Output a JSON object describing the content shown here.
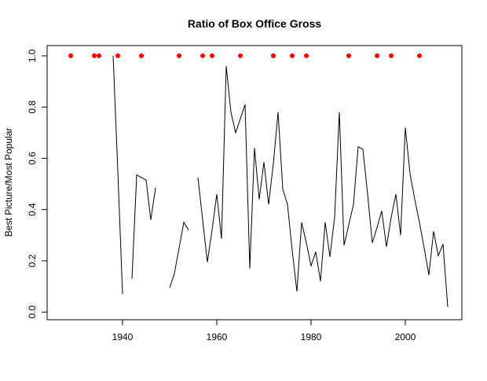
{
  "chart_data": {
    "type": "line",
    "title": "Ratio of Box Office Gross",
    "y_label": "Best Picture/Most Popular",
    "xlim": [
      1924,
      2012
    ],
    "ylim": [
      -0.03,
      1.04
    ],
    "xticks": [
      1940,
      1960,
      1980,
      2000
    ],
    "yticks": [
      {
        "value": 0,
        "label": "0.0"
      },
      0.2,
      0.4,
      0.6,
      0.8,
      {
        "value": 1,
        "label": "1.0"
      }
    ],
    "grid": false,
    "series": [
      {
        "type": "line",
        "color": "#000000",
        "x": [
          1938,
          1939,
          1940,
          1941,
          1942,
          1943,
          1944,
          1945,
          1946,
          1947,
          1948,
          1949,
          1950,
          1951,
          1952,
          1953,
          1954,
          1955,
          1956,
          1957,
          1958,
          1959,
          1960,
          1961,
          1962,
          1963,
          1964,
          1965,
          1966,
          1967,
          1968,
          1969,
          1970,
          1971,
          1972,
          1973,
          1974,
          1975,
          1976,
          1977,
          1978,
          1979,
          1980,
          1981,
          1982,
          1983,
          1984,
          1985,
          1986,
          1987,
          1988,
          1989,
          1990,
          1991,
          1992,
          1993,
          1994,
          1995,
          1996,
          1997,
          1998,
          1999,
          2000,
          2001,
          2002,
          2003,
          2004,
          2005,
          2006,
          2007,
          2008,
          2009
        ],
        "values": [
          1.0,
          0.55,
          0.07,
          null,
          0.13,
          0.535,
          0.525,
          0.515,
          0.36,
          0.485,
          null,
          null,
          0.095,
          0.15,
          0.25,
          0.35,
          0.32,
          null,
          0.525,
          0.36,
          0.195,
          0.32,
          0.46,
          0.285,
          0.96,
          0.78,
          0.7,
          0.755,
          0.81,
          0.17,
          0.64,
          0.44,
          0.585,
          0.42,
          0.58,
          0.78,
          0.48,
          0.42,
          0.24,
          0.08,
          0.35,
          0.27,
          0.18,
          0.235,
          0.12,
          0.35,
          0.215,
          0.37,
          0.78,
          0.26,
          0.34,
          0.42,
          0.645,
          0.635,
          0.46,
          0.27,
          0.33,
          0.395,
          0.255,
          0.37,
          0.46,
          0.3,
          0.72,
          0.54,
          0.44,
          0.35,
          0.25,
          0.145,
          0.315,
          0.22,
          0.265,
          0.02
        ]
      },
      {
        "type": "scatter",
        "color": "#ff0000",
        "x": [
          1929,
          1934,
          1935,
          1939,
          1944,
          1952,
          1957,
          1959,
          1965,
          1972,
          1976,
          1979,
          1988,
          1994,
          1997,
          2003
        ],
        "values": [
          1,
          1,
          1,
          1,
          1,
          1,
          1,
          1,
          1,
          1,
          1,
          1,
          1,
          1,
          1,
          1
        ]
      }
    ]
  }
}
